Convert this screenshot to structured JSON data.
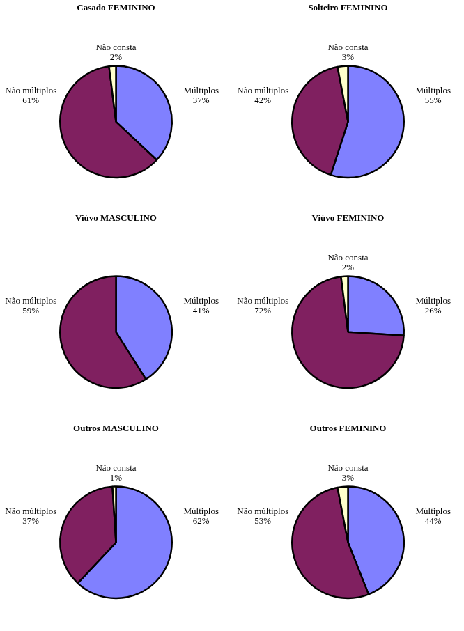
{
  "chart_data": [
    {
      "type": "pie",
      "title": "Casado FEMININO",
      "categories": [
        "Múltiplos",
        "Não múltiplos",
        "Não consta"
      ],
      "values": [
        37,
        61,
        2
      ],
      "value_labels": [
        "37%",
        "61%",
        "2%"
      ],
      "colors": [
        "#8080ff",
        "#802060",
        "#ffffcc"
      ],
      "data_labels": true
    },
    {
      "type": "pie",
      "title": "Solteiro FEMININO",
      "categories": [
        "Múltiplos",
        "Não múltiplos",
        "Não consta"
      ],
      "values": [
        55,
        42,
        3
      ],
      "value_labels": [
        "55%",
        "42%",
        "3%"
      ],
      "colors": [
        "#8080ff",
        "#802060",
        "#ffffcc"
      ],
      "data_labels": true
    },
    {
      "type": "pie",
      "title": "Viúvo MASCULINO",
      "categories": [
        "Múltiplos",
        "Não múltiplos"
      ],
      "values": [
        41,
        59
      ],
      "value_labels": [
        "41%",
        "59%"
      ],
      "colors": [
        "#8080ff",
        "#802060"
      ],
      "data_labels": true
    },
    {
      "type": "pie",
      "title": "Viúvo FEMININO",
      "categories": [
        "Múltiplos",
        "Não múltiplos",
        "Não consta"
      ],
      "values": [
        26,
        72,
        2
      ],
      "value_labels": [
        "26%",
        "72%",
        "2%"
      ],
      "colors": [
        "#8080ff",
        "#802060",
        "#ffffcc"
      ],
      "data_labels": true
    },
    {
      "type": "pie",
      "title": "Outros MASCULINO",
      "categories": [
        "Múltiplos",
        "Não múltiplos",
        "Não consta"
      ],
      "values": [
        62,
        37,
        1
      ],
      "value_labels": [
        "62%",
        "37%",
        "1%"
      ],
      "colors": [
        "#8080ff",
        "#802060",
        "#ffffcc"
      ],
      "data_labels": true
    },
    {
      "type": "pie",
      "title": "Outros FEMININO",
      "categories": [
        "Múltiplos",
        "Não múltiplos",
        "Não consta"
      ],
      "values": [
        44,
        53,
        3
      ],
      "value_labels": [
        "44%",
        "53%",
        "3%"
      ],
      "colors": [
        "#8080ff",
        "#802060",
        "#ffffcc"
      ],
      "data_labels": true
    }
  ]
}
